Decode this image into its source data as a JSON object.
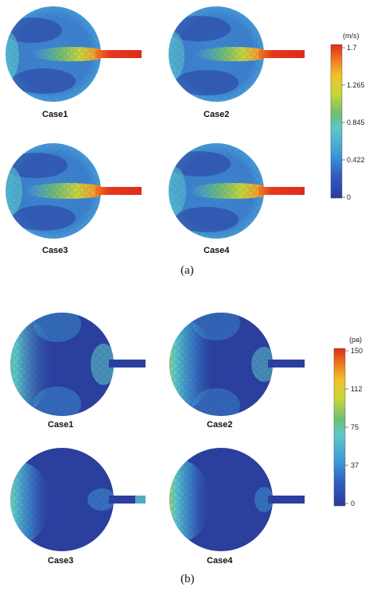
{
  "figure": {
    "panel_a": {
      "caption": "(a)",
      "unit": "(m/s)",
      "colorbar_ticks": [
        "1.7",
        "1.265",
        "0.845",
        "0.422",
        "0"
      ],
      "colorbar_range": [
        0,
        1.7
      ],
      "cases": [
        "Case1",
        "Case2",
        "Case3",
        "Case4"
      ]
    },
    "panel_b": {
      "caption": "(b)",
      "unit": "(pa)",
      "colorbar_ticks": [
        "150",
        "112",
        "75",
        "37",
        "0"
      ],
      "colorbar_range": [
        0,
        150
      ],
      "cases": [
        "Case1",
        "Case2",
        "Case3",
        "Case4"
      ]
    },
    "colormap": [
      "#2a3a9c",
      "#2f5fc4",
      "#3f9fd8",
      "#5cc8c8",
      "#6cc070",
      "#c8d63a",
      "#f2c12a",
      "#f07a1e",
      "#e02a1a"
    ]
  }
}
